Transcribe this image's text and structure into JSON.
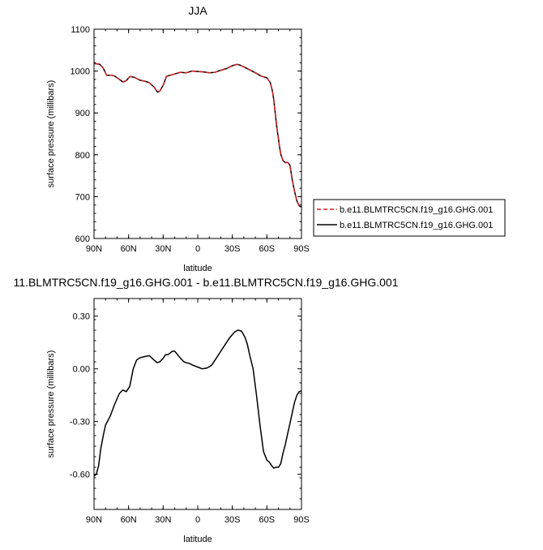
{
  "colors": {
    "series_a": "#d11f1f",
    "series_b": "#000000"
  },
  "chart_data": [
    {
      "type": "line",
      "title": "JJA",
      "xlabel": "latitude",
      "ylabel": "surface pressure (millibars)",
      "xlim": [
        90,
        -90
      ],
      "ylim": [
        600,
        1100
      ],
      "xticks": [
        90,
        60,
        30,
        0,
        -30,
        -60,
        -90
      ],
      "xtick_labels": [
        "90N",
        "60N",
        "30N",
        "0",
        "30S",
        "60S",
        "90S"
      ],
      "yticks": [
        600,
        700,
        800,
        900,
        1000,
        1100
      ],
      "ytick_labels": [
        "600",
        "700",
        "800",
        "900",
        "1000",
        "1100"
      ],
      "legend": "right",
      "series": [
        {
          "name": "b.e11.BLMTRC5CN.f19_g16.GHG.001",
          "color": "#d11f1f",
          "dash": "dashed",
          "x": [
            90,
            85,
            82,
            79,
            75,
            72,
            68,
            65,
            62,
            59,
            55,
            50,
            46,
            42,
            38,
            35,
            33,
            30,
            27,
            24,
            20,
            15,
            10,
            5,
            0,
            -5,
            -10,
            -15,
            -20,
            -25,
            -30,
            -34,
            -37,
            -40,
            -45,
            -50,
            -55,
            -60,
            -63,
            -65,
            -66,
            -67,
            -68,
            -69,
            -70,
            -71,
            -72,
            -74,
            -76,
            -78,
            -80,
            -82,
            -84,
            -86,
            -88,
            -90
          ],
          "y": [
            1018,
            1016,
            1007,
            990,
            990,
            988,
            980,
            974,
            977,
            987,
            985,
            978,
            976,
            972,
            962,
            950,
            952,
            966,
            988,
            990,
            993,
            997,
            996,
            1000,
            999,
            998,
            996,
            997,
            1002,
            1006,
            1013,
            1016,
            1014,
            1010,
            1003,
            996,
            988,
            984,
            972,
            950,
            930,
            905,
            880,
            858,
            838,
            818,
            802,
            786,
            781,
            782,
            775,
            740,
            712,
            690,
            678,
            675
          ]
        },
        {
          "name": "b.e11.BLMTRC5CN.f19_g16.GHG.001",
          "color": "#000000",
          "dash": "solid",
          "x": [
            90,
            85,
            82,
            79,
            75,
            72,
            68,
            65,
            62,
            59,
            55,
            50,
            46,
            42,
            38,
            35,
            33,
            30,
            27,
            24,
            20,
            15,
            10,
            5,
            0,
            -5,
            -10,
            -15,
            -20,
            -25,
            -30,
            -34,
            -37,
            -40,
            -45,
            -50,
            -55,
            -60,
            -63,
            -65,
            -66,
            -67,
            -68,
            -69,
            -70,
            -71,
            -72,
            -74,
            -76,
            -78,
            -80,
            -82,
            -84,
            -86,
            -88,
            -90
          ],
          "y": [
            1018,
            1016,
            1007,
            990,
            990,
            988,
            980,
            974,
            977,
            987,
            985,
            978,
            976,
            972,
            962,
            950,
            952,
            966,
            988,
            990,
            993,
            997,
            996,
            1000,
            999,
            998,
            996,
            997,
            1002,
            1006,
            1013,
            1016,
            1014,
            1010,
            1003,
            996,
            988,
            984,
            972,
            950,
            930,
            905,
            880,
            858,
            838,
            818,
            802,
            786,
            781,
            782,
            775,
            740,
            712,
            690,
            678,
            675
          ]
        }
      ]
    },
    {
      "type": "line",
      "title": "11.BLMTRC5CN.f19_g16.GHG.001 - b.e11.BLMTRC5CN.f19_g16.GHG.001",
      "xlabel": "latitude",
      "ylabel": "surface pressure (millibars)",
      "xlim": [
        90,
        -90
      ],
      "ylim": [
        -0.8,
        0.4
      ],
      "xticks": [
        90,
        60,
        30,
        0,
        -30,
        -60,
        -90
      ],
      "xtick_labels": [
        "90N",
        "60N",
        "30N",
        "0",
        "30S",
        "60S",
        "90S"
      ],
      "yticks": [
        0.3,
        0.0,
        -0.3,
        -0.6
      ],
      "ytick_labels": [
        "0.30",
        "0.00",
        "-0.30",
        "-0.60"
      ],
      "series": [
        {
          "color": "#000000",
          "dash": "solid",
          "x": [
            90,
            88,
            86,
            84,
            82,
            80,
            76,
            72,
            68,
            65,
            62,
            59,
            56,
            53,
            51,
            49,
            46,
            42,
            38,
            35,
            33,
            30,
            28,
            26,
            24,
            22,
            20,
            18,
            15,
            12,
            10,
            7,
            4,
            0,
            -4,
            -8,
            -12,
            -16,
            -20,
            -24,
            -28,
            -32,
            -35,
            -38,
            -41,
            -43,
            -45,
            -48,
            -51,
            -54,
            -57,
            -60,
            -62,
            -64,
            -66,
            -68,
            -70,
            -72,
            -74,
            -76,
            -78,
            -80,
            -82,
            -84,
            -86,
            -88,
            -90
          ],
          "y": [
            -0.61,
            -0.6,
            -0.55,
            -0.45,
            -0.38,
            -0.32,
            -0.27,
            -0.2,
            -0.14,
            -0.12,
            -0.13,
            -0.1,
            0.0,
            0.05,
            0.06,
            0.065,
            0.07,
            0.075,
            0.05,
            0.035,
            0.04,
            0.06,
            0.08,
            0.08,
            0.09,
            0.1,
            0.1,
            0.085,
            0.06,
            0.04,
            0.035,
            0.03,
            0.02,
            0.01,
            0.0,
            0.005,
            0.02,
            0.06,
            0.1,
            0.14,
            0.18,
            0.21,
            0.22,
            0.215,
            0.18,
            0.14,
            0.08,
            0.0,
            -0.15,
            -0.32,
            -0.47,
            -0.52,
            -0.53,
            -0.55,
            -0.565,
            -0.56,
            -0.56,
            -0.54,
            -0.48,
            -0.43,
            -0.37,
            -0.31,
            -0.25,
            -0.19,
            -0.15,
            -0.13,
            -0.125
          ]
        }
      ]
    }
  ]
}
